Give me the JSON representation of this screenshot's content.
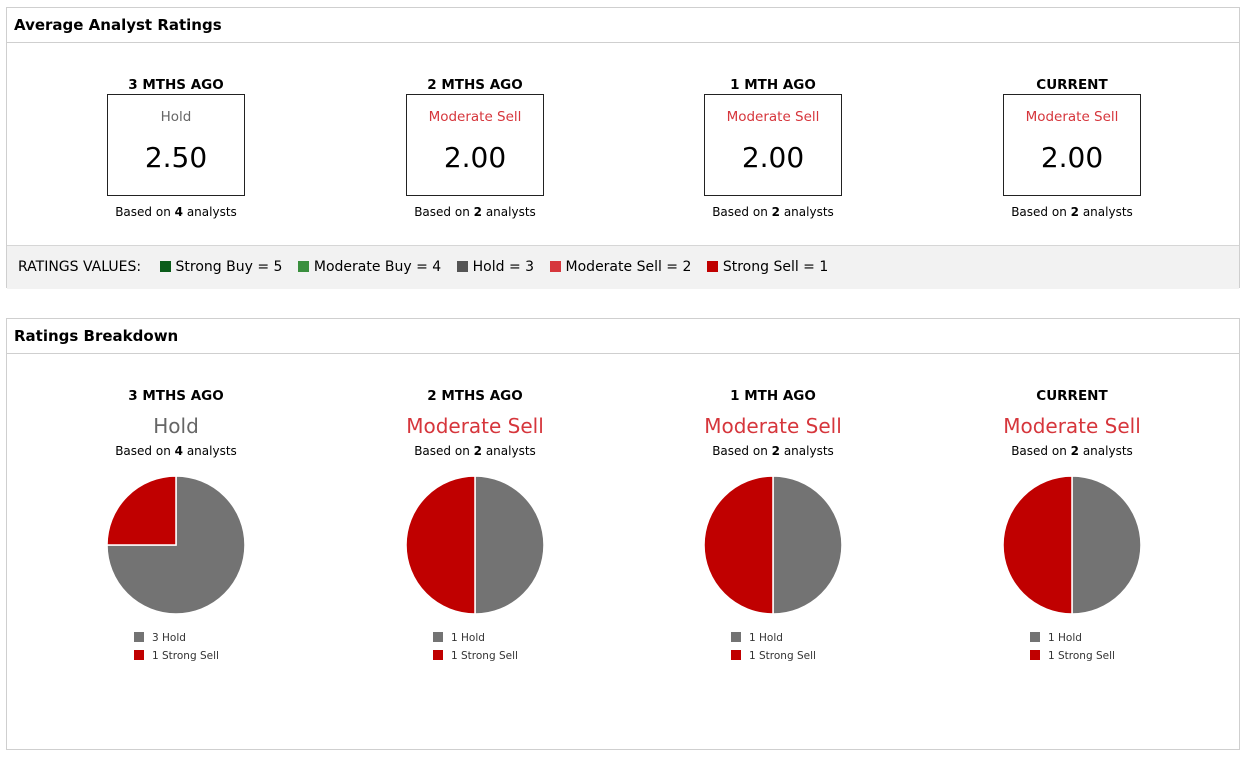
{
  "colors": {
    "strong_buy": "#0b5c1a",
    "moderate_buy": "#3a8f3e",
    "hold": "#555555",
    "moderate_sell": "#d6363c",
    "strong_sell": "#c00000",
    "pie_hold": "#737373",
    "pie_strong_sell": "#c00000"
  },
  "average": {
    "title": "Average Analyst Ratings",
    "periods": [
      {
        "period": "3 MTHS AGO",
        "rating": "Hold",
        "value": "2.50",
        "based_prefix": "Based on",
        "count": "4",
        "based_suffix": "analysts",
        "color": "#666666"
      },
      {
        "period": "2 MTHS AGO",
        "rating": "Moderate Sell",
        "value": "2.00",
        "based_prefix": "Based on",
        "count": "2",
        "based_suffix": "analysts",
        "color": "#d6363c"
      },
      {
        "period": "1 MTH AGO",
        "rating": "Moderate Sell",
        "value": "2.00",
        "based_prefix": "Based on",
        "count": "2",
        "based_suffix": "analysts",
        "color": "#d6363c"
      },
      {
        "period": "CURRENT",
        "rating": "Moderate Sell",
        "value": "2.00",
        "based_prefix": "Based on",
        "count": "2",
        "based_suffix": "analysts",
        "color": "#d6363c"
      }
    ],
    "legend_title": "RATINGS VALUES:",
    "legend": [
      {
        "label": "Strong Buy = 5",
        "color": "#0b5c1a"
      },
      {
        "label": "Moderate Buy = 4",
        "color": "#3a8f3e"
      },
      {
        "label": "Hold = 3",
        "color": "#555555"
      },
      {
        "label": "Moderate Sell = 2",
        "color": "#d6363c"
      },
      {
        "label": "Strong Sell = 1",
        "color": "#c00000"
      }
    ]
  },
  "breakdown": {
    "title": "Ratings Breakdown"
  },
  "chart_data": [
    {
      "type": "pie",
      "title": "3 MTHS AGO",
      "subtitle": "Hold",
      "note_prefix": "Based on",
      "note_count": "4",
      "note_suffix": "analysts",
      "categories": [
        "Hold",
        "Strong Sell"
      ],
      "values": [
        3,
        1
      ],
      "legend": [
        "3 Hold",
        "1 Strong Sell"
      ],
      "colors": [
        "#737373",
        "#c00000"
      ],
      "subtitle_color": "#666666"
    },
    {
      "type": "pie",
      "title": "2 MTHS AGO",
      "subtitle": "Moderate Sell",
      "note_prefix": "Based on",
      "note_count": "2",
      "note_suffix": "analysts",
      "categories": [
        "Hold",
        "Strong Sell"
      ],
      "values": [
        1,
        1
      ],
      "legend": [
        "1 Hold",
        "1 Strong Sell"
      ],
      "colors": [
        "#737373",
        "#c00000"
      ],
      "subtitle_color": "#d6363c"
    },
    {
      "type": "pie",
      "title": "1 MTH AGO",
      "subtitle": "Moderate Sell",
      "note_prefix": "Based on",
      "note_count": "2",
      "note_suffix": "analysts",
      "categories": [
        "Hold",
        "Strong Sell"
      ],
      "values": [
        1,
        1
      ],
      "legend": [
        "1 Hold",
        "1 Strong Sell"
      ],
      "colors": [
        "#737373",
        "#c00000"
      ],
      "subtitle_color": "#d6363c"
    },
    {
      "type": "pie",
      "title": "CURRENT",
      "subtitle": "Moderate Sell",
      "note_prefix": "Based on",
      "note_count": "2",
      "note_suffix": "analysts",
      "categories": [
        "Hold",
        "Strong Sell"
      ],
      "values": [
        1,
        1
      ],
      "legend": [
        "1 Hold",
        "1 Strong Sell"
      ],
      "colors": [
        "#737373",
        "#c00000"
      ],
      "subtitle_color": "#d6363c"
    }
  ]
}
